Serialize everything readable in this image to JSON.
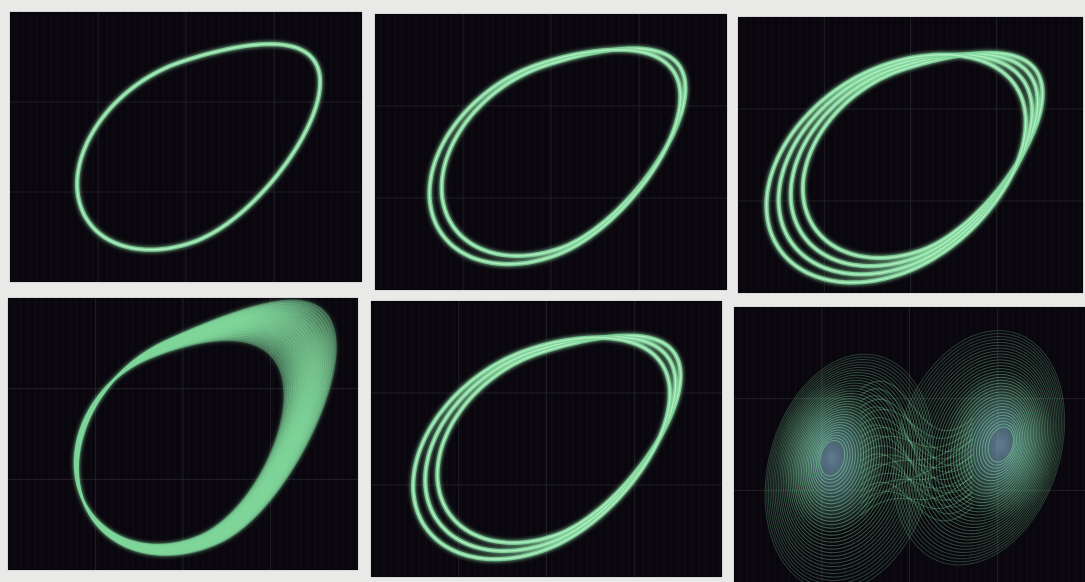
{
  "figure": {
    "panels": [
      {
        "id": "p1",
        "description_name": "period-1-orbit",
        "loops": 1
      },
      {
        "id": "p2",
        "description_name": "period-2-orbit",
        "loops": 2
      },
      {
        "id": "p3",
        "description_name": "period-4-orbit",
        "loops": 4
      },
      {
        "id": "p4",
        "description_name": "chaotic-band",
        "loops": 0
      },
      {
        "id": "p5",
        "description_name": "period-3-orbit",
        "loops": 3
      },
      {
        "id": "p6",
        "description_name": "double-scroll-attractor",
        "loops": 0
      }
    ],
    "colors": {
      "panel_bg": "#09070d",
      "trace": "#7fd69a",
      "trace_core": "#b9f0c8",
      "grid": "#3c3c40",
      "scroll_center": "#a9d8ff",
      "page_bg": "#e9eae8"
    }
  }
}
